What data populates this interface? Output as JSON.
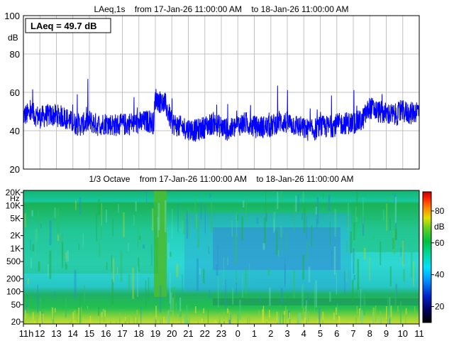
{
  "chart_data": [
    {
      "type": "line",
      "title": "LAeq,1s    from 17-Jan-26 11:00:00 AM    to 18-Jan-26 11:00:00 AM",
      "annotation": "LAeq = 49.7 dB",
      "ylabel": "dB",
      "ylim": [
        20,
        100
      ],
      "y_ticks": [
        "100",
        "80",
        "60",
        "40",
        "20"
      ],
      "grid": true,
      "series_color": "#0000ff",
      "series": [
        {
          "x_hours": [
            0,
            0.5,
            1,
            1.5,
            2,
            2.5,
            3,
            3.5,
            4,
            4.5,
            5,
            5.5,
            6,
            6.5,
            7,
            7.5,
            7.9,
            8,
            8.3,
            8.6,
            9,
            9.5,
            10,
            10.5,
            11,
            11.5,
            12,
            12.5,
            13,
            13.5,
            14,
            14.5,
            15,
            15.5,
            16,
            16.5,
            17,
            17.5,
            18,
            18.5,
            19,
            19.5,
            20,
            20.5,
            21,
            21.5,
            22,
            22.5,
            23,
            23.5,
            24
          ],
          "y_mid": [
            48,
            49,
            47,
            48,
            48,
            47,
            44,
            43,
            45,
            43,
            44,
            43,
            43,
            44,
            44,
            45,
            44,
            57,
            55,
            54,
            44,
            42,
            41,
            40,
            42,
            44,
            42,
            40,
            43,
            44,
            42,
            42,
            42,
            45,
            44,
            43,
            41,
            40,
            42,
            42,
            43,
            44,
            44,
            45,
            52,
            50,
            49,
            48,
            50,
            49,
            51
          ]
        }
      ]
    },
    {
      "type": "heatmap",
      "title": "1/3 Octave    from 17-Jan-26 11:00:00 AM    to 18-Jan-26 11:00:00 AM",
      "y_unit": "Hz",
      "y_ticks": [
        "20K",
        "10K",
        "5K",
        "2K",
        "1K",
        "500",
        "200",
        "100",
        "50",
        "20"
      ],
      "y_tick_values": [
        20000,
        10000,
        5000,
        2000,
        1000,
        500,
        200,
        100,
        50,
        20
      ],
      "x_ticks": [
        "11h",
        "12",
        "13",
        "14",
        "15",
        "16",
        "17",
        "18",
        "19",
        "20",
        "21",
        "22",
        "23",
        "0",
        "1",
        "2",
        "3",
        "4",
        "5",
        "6",
        "7",
        "8",
        "9",
        "10",
        "11"
      ],
      "colorbar": {
        "label": "dB",
        "ticks": [
          "80",
          "60",
          "40",
          "20"
        ],
        "tick_values": [
          80,
          60,
          40,
          20
        ],
        "range": [
          10,
          92
        ]
      }
    }
  ]
}
